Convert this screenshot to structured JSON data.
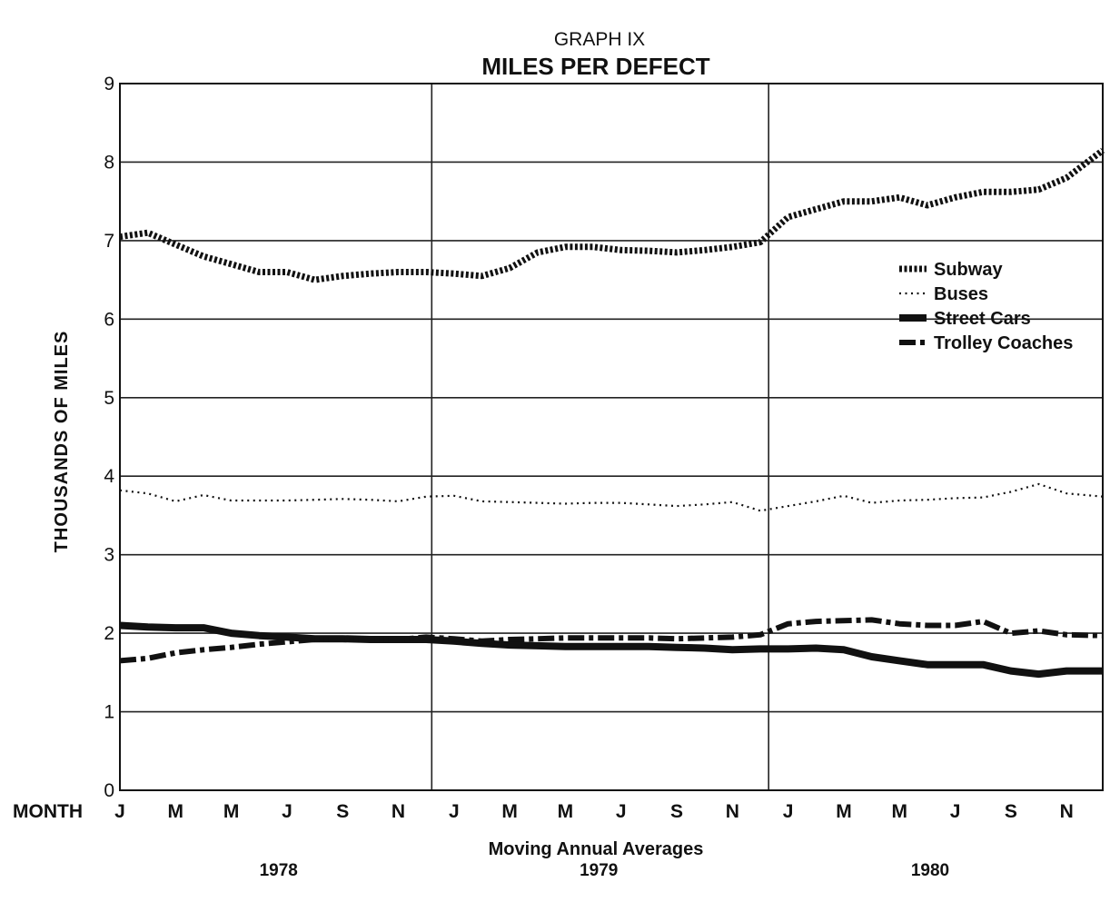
{
  "chart_data": {
    "type": "line",
    "subtitle": "GRAPH IX",
    "title": "MILES PER DEFECT",
    "ylabel": "THOUSANDS OF MILES",
    "xlabel": "Moving Annual Averages",
    "month_label": "MONTH",
    "ylim": [
      0,
      9
    ],
    "yticks": [
      "0",
      "1",
      "2",
      "3",
      "4",
      "5",
      "6",
      "7",
      "8",
      "9"
    ],
    "xlim": [
      0,
      35.3
    ],
    "xticks": [
      {
        "x": 0,
        "label": "J"
      },
      {
        "x": 2,
        "label": "M"
      },
      {
        "x": 4,
        "label": "M"
      },
      {
        "x": 6,
        "label": "J"
      },
      {
        "x": 8,
        "label": "S"
      },
      {
        "x": 10,
        "label": "N"
      },
      {
        "x": 12,
        "label": "J"
      },
      {
        "x": 14,
        "label": "M"
      },
      {
        "x": 16,
        "label": "M"
      },
      {
        "x": 18,
        "label": "J"
      },
      {
        "x": 20,
        "label": "S"
      },
      {
        "x": 22,
        "label": "N"
      },
      {
        "x": 24,
        "label": "J"
      },
      {
        "x": 26,
        "label": "M"
      },
      {
        "x": 28,
        "label": "M"
      },
      {
        "x": 30,
        "label": "J"
      },
      {
        "x": 32,
        "label": "S"
      },
      {
        "x": 34,
        "label": "N"
      }
    ],
    "year_dividers": [
      11.2,
      23.3
    ],
    "years": [
      {
        "label": "1978",
        "x": 5.7
      },
      {
        "label": "1979",
        "x": 17.2
      },
      {
        "label": "1980",
        "x": 29.1
      }
    ],
    "grid": true,
    "legend_position": "upper-right",
    "series": [
      {
        "name": "Subway",
        "style": "heavy-dotted",
        "x": [
          0,
          1,
          2,
          3,
          4,
          5,
          6,
          7,
          8,
          9,
          10,
          11,
          12,
          13,
          14,
          15,
          16,
          17,
          18,
          19,
          20,
          21,
          22,
          23,
          24,
          25,
          26,
          27,
          28,
          29,
          30,
          31,
          32,
          33,
          34,
          35.3
        ],
        "y": [
          7.05,
          7.1,
          6.95,
          6.8,
          6.7,
          6.6,
          6.6,
          6.5,
          6.55,
          6.58,
          6.6,
          6.6,
          6.58,
          6.55,
          6.65,
          6.85,
          6.92,
          6.92,
          6.88,
          6.87,
          6.85,
          6.88,
          6.92,
          6.98,
          7.3,
          7.4,
          7.5,
          7.5,
          7.55,
          7.45,
          7.55,
          7.62,
          7.62,
          7.65,
          7.8,
          8.15
        ]
      },
      {
        "name": "Buses",
        "style": "fine-dotted",
        "x": [
          0,
          1,
          2,
          3,
          4,
          5,
          6,
          7,
          8,
          9,
          10,
          11,
          12,
          13,
          14,
          15,
          16,
          17,
          18,
          19,
          20,
          21,
          22,
          23,
          24,
          25,
          26,
          27,
          28,
          29,
          30,
          31,
          32,
          33,
          34,
          35.3
        ],
        "y": [
          3.82,
          3.78,
          3.68,
          3.76,
          3.69,
          3.69,
          3.69,
          3.7,
          3.71,
          3.7,
          3.68,
          3.74,
          3.75,
          3.68,
          3.67,
          3.66,
          3.65,
          3.66,
          3.66,
          3.64,
          3.62,
          3.64,
          3.67,
          3.56,
          3.62,
          3.68,
          3.75,
          3.66,
          3.69,
          3.7,
          3.72,
          3.73,
          3.8,
          3.9,
          3.78,
          3.74
        ]
      },
      {
        "name": "Street Cars",
        "style": "solid-heavy",
        "x": [
          0,
          1,
          2,
          3,
          4,
          5,
          6,
          7,
          8,
          9,
          10,
          11,
          12,
          13,
          14,
          15,
          16,
          17,
          18,
          19,
          20,
          21,
          22,
          23,
          24,
          25,
          26,
          27,
          28,
          29,
          30,
          31,
          32,
          33,
          34,
          35.3
        ],
        "y": [
          2.1,
          2.08,
          2.07,
          2.07,
          2.0,
          1.97,
          1.95,
          1.93,
          1.93,
          1.92,
          1.92,
          1.92,
          1.9,
          1.87,
          1.85,
          1.84,
          1.83,
          1.83,
          1.83,
          1.83,
          1.82,
          1.81,
          1.79,
          1.8,
          1.8,
          1.81,
          1.79,
          1.7,
          1.65,
          1.6,
          1.6,
          1.6,
          1.52,
          1.48,
          1.52,
          1.52
        ]
      },
      {
        "name": "Trolley Coaches",
        "style": "dash-dot-heavy",
        "x": [
          0,
          1,
          2,
          3,
          4,
          5,
          6,
          7,
          8,
          9,
          10,
          11,
          12,
          13,
          14,
          15,
          16,
          17,
          18,
          19,
          20,
          21,
          22,
          23,
          24,
          25,
          26,
          27,
          28,
          29,
          30,
          31,
          32,
          33,
          34,
          35.3
        ],
        "y": [
          1.65,
          1.68,
          1.75,
          1.79,
          1.82,
          1.86,
          1.89,
          1.92,
          1.92,
          1.92,
          1.92,
          1.95,
          1.93,
          1.9,
          1.92,
          1.93,
          1.94,
          1.94,
          1.94,
          1.94,
          1.93,
          1.94,
          1.95,
          1.98,
          2.12,
          2.15,
          2.16,
          2.17,
          2.12,
          2.1,
          2.1,
          2.15,
          2.0,
          2.03,
          1.98,
          1.97
        ]
      }
    ]
  }
}
